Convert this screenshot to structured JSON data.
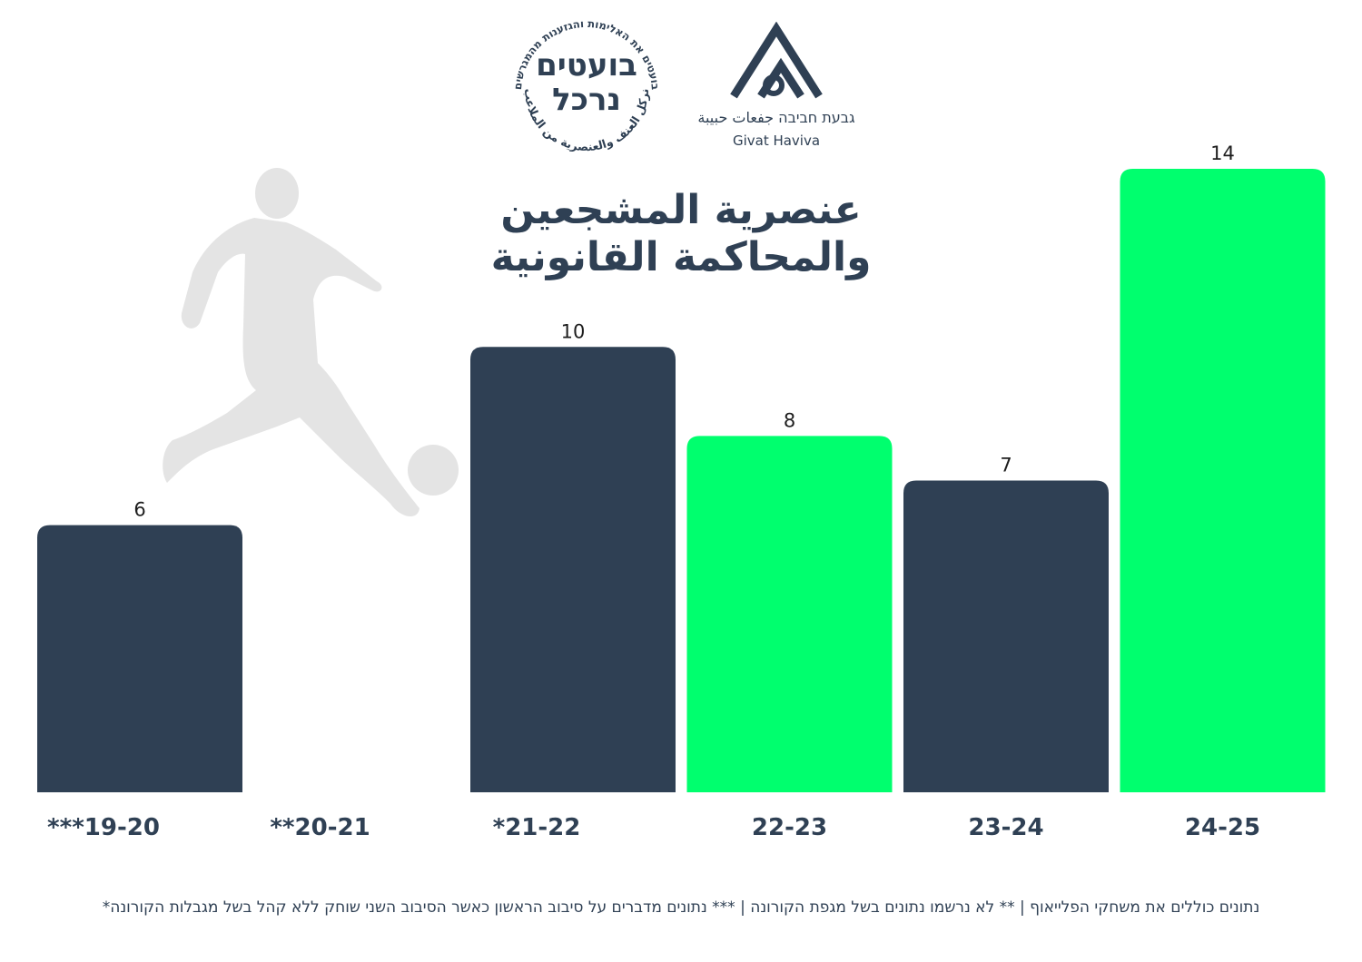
{
  "logos": {
    "stamp": {
      "main_line1": "בועטים",
      "main_line2": "נרכל",
      "ring_top": "בועטים את האלימות והגזענות מהמגרשים",
      "ring_bottom": "نركل العنف والعنصرية من الملاعب"
    },
    "givat_haviva": {
      "hebrew_arabic": "גבעת חביבה  جفعات حبيبة",
      "english": "Givat Haviva"
    }
  },
  "title": {
    "line1": "عنصرية المشجعين",
    "line2": "والمحاكمة القانونية"
  },
  "chart_data": {
    "type": "bar",
    "categories": [
      "***19-20",
      "**20-21",
      "*21-22",
      "22-23",
      "23-24",
      "24-25"
    ],
    "values": [
      6,
      null,
      10,
      8,
      7,
      14
    ],
    "value_labels": [
      "6",
      "",
      "10",
      "8",
      "7",
      "14"
    ],
    "bar_colors": [
      "#2f4054",
      "#2f4054",
      "#2f4054",
      "#00ff6e",
      "#2f4054",
      "#00ff6e"
    ],
    "ylim": [
      0,
      14
    ],
    "grid": false
  },
  "colors": {
    "dark": "#2f4054",
    "accent": "#00ff6e",
    "silhouette": "#e4e4e4"
  },
  "footnote": "*נתונים כוללים את משחקי הפלייאוף  |  ** לא נרשמו נתונים בשל מגפת הקורונה | *** נתונים מדברים על סיבוב הראשון כאשר הסיבוב השני שוחק ללא קהל בשל מגבלות הקורונה"
}
